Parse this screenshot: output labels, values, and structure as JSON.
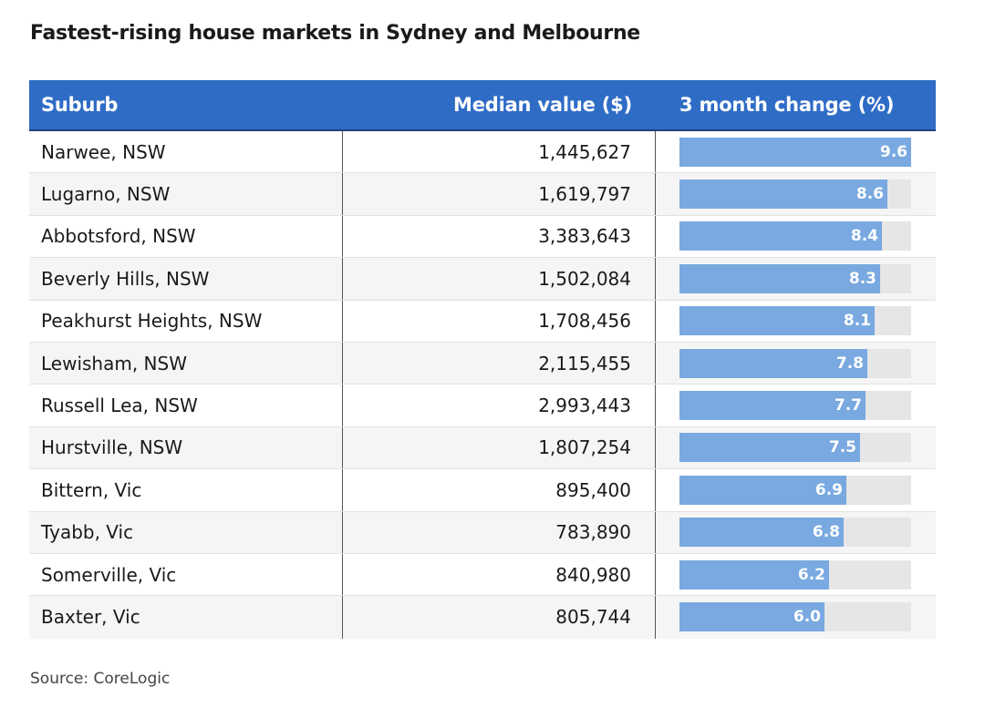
{
  "title": "Fastest-rising house markets in Sydney and Melbourne",
  "source": "Source: CoreLogic",
  "colors": {
    "header_bg": "#2f6cc6",
    "bar_fill": "#79a9e0",
    "bar_track": "#e6e6e6"
  },
  "chart_data": {
    "type": "table",
    "title": "Fastest-rising house markets in Sydney and Melbourne",
    "columns": [
      "Suburb",
      "Median value ($)",
      "3 month change (%)"
    ],
    "bar_max": 9.6,
    "rows": [
      {
        "suburb": "Narwee, NSW",
        "value": "1,445,627",
        "change": 9.6,
        "change_label": "9.6"
      },
      {
        "suburb": "Lugarno, NSW",
        "value": "1,619,797",
        "change": 8.6,
        "change_label": "8.6"
      },
      {
        "suburb": "Abbotsford, NSW",
        "value": "3,383,643",
        "change": 8.4,
        "change_label": "8.4"
      },
      {
        "suburb": "Beverly Hills, NSW",
        "value": "1,502,084",
        "change": 8.3,
        "change_label": "8.3"
      },
      {
        "suburb": "Peakhurst Heights, NSW",
        "value": "1,708,456",
        "change": 8.1,
        "change_label": "8.1"
      },
      {
        "suburb": "Lewisham, NSW",
        "value": "2,115,455",
        "change": 7.8,
        "change_label": "7.8"
      },
      {
        "suburb": "Russell Lea, NSW",
        "value": "2,993,443",
        "change": 7.7,
        "change_label": "7.7"
      },
      {
        "suburb": "Hurstville, NSW",
        "value": "1,807,254",
        "change": 7.5,
        "change_label": "7.5"
      },
      {
        "suburb": "Bittern, Vic",
        "value": "895,400",
        "change": 6.9,
        "change_label": "6.9"
      },
      {
        "suburb": "Tyabb, Vic",
        "value": "783,890",
        "change": 6.8,
        "change_label": "6.8"
      },
      {
        "suburb": "Somerville, Vic",
        "value": "840,980",
        "change": 6.2,
        "change_label": "6.2"
      },
      {
        "suburb": "Baxter, Vic",
        "value": "805,744",
        "change": 6.0,
        "change_label": "6.0"
      }
    ]
  }
}
